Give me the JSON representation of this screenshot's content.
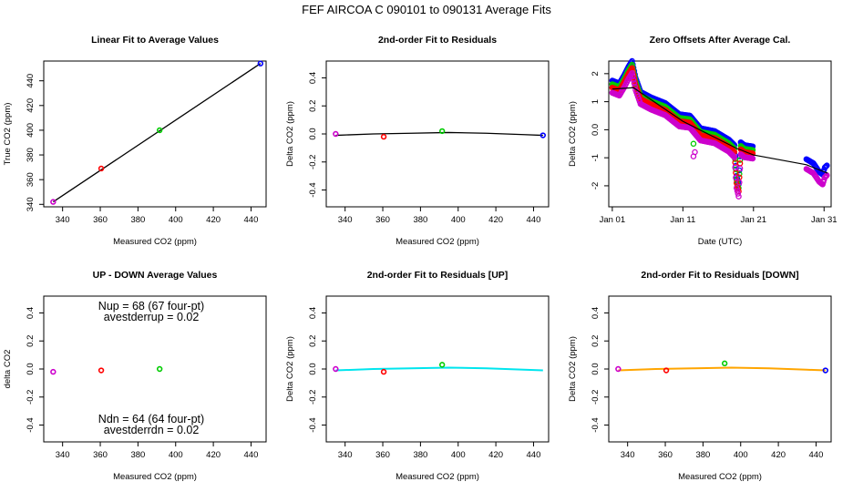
{
  "figure_title": "FEF   AIRCOA C   090101 to 090131   Average Fits",
  "colors": {
    "blue": "#0000ff",
    "red": "#ff0000",
    "green": "#00cc00",
    "purple": "#cc00cc",
    "black": "#000000",
    "cyan": "#00e5ee",
    "orange": "#ffa500"
  },
  "chart_data": [
    {
      "id": "p1",
      "type": "scatter",
      "title": "Linear Fit to Average Values",
      "xlabel": "Measured CO2 (ppm)",
      "ylabel": "True CO2 (ppm)",
      "xlim": [
        330,
        448
      ],
      "ylim": [
        338,
        456
      ],
      "xticks": [
        340,
        360,
        380,
        400,
        420,
        440
      ],
      "yticks": [
        340,
        360,
        380,
        400,
        420,
        440
      ],
      "points": [
        {
          "x": 335,
          "y": 342,
          "color": "purple"
        },
        {
          "x": 360.5,
          "y": 369,
          "color": "red"
        },
        {
          "x": 391.5,
          "y": 400,
          "color": "green"
        },
        {
          "x": 445,
          "y": 454,
          "color": "blue"
        }
      ],
      "lines": [
        {
          "x": [
            335,
            445
          ],
          "y": [
            342,
            454
          ],
          "color": "black"
        }
      ]
    },
    {
      "id": "p2",
      "type": "scatter",
      "title": "2nd-order Fit to Residuals",
      "xlabel": "Measured CO2 (ppm)",
      "ylabel": "Delta CO2 (ppm)",
      "xlim": [
        330,
        448
      ],
      "ylim": [
        -0.52,
        0.52
      ],
      "xticks": [
        340,
        360,
        380,
        400,
        420,
        440
      ],
      "yticks": [
        -0.4,
        -0.2,
        0.0,
        0.2,
        0.4
      ],
      "points": [
        {
          "x": 335,
          "y": 0.0,
          "color": "purple"
        },
        {
          "x": 360.5,
          "y": -0.02,
          "color": "red"
        },
        {
          "x": 391.5,
          "y": 0.02,
          "color": "green"
        },
        {
          "x": 445,
          "y": -0.01,
          "color": "blue"
        }
      ],
      "lines": [
        {
          "x": [
            335,
            355,
            375,
            395,
            415,
            435,
            445
          ],
          "y": [
            -0.01,
            0.0,
            0.005,
            0.01,
            0.005,
            -0.005,
            -0.01
          ],
          "color": "black"
        }
      ]
    },
    {
      "id": "p3",
      "type": "line",
      "title": "Zero Offsets After Average Cal.",
      "xlabel": "Date (UTC)",
      "ylabel": "Delta CO2 (ppm)",
      "xlim": [
        0,
        31.5
      ],
      "ylim": [
        -2.75,
        2.45
      ],
      "xticks": [
        0.5,
        10.5,
        20.5,
        30.5
      ],
      "xticklabels": [
        "Jan 01",
        "Jan 11",
        "Jan 21",
        "Jan 31"
      ],
      "yticks": [
        -2,
        -1,
        0,
        1,
        2
      ],
      "series": [
        {
          "name": "blue",
          "color": "blue",
          "offset": 0.25,
          "x": [
            0.5,
            1.5,
            2.2,
            2.8,
            3.3,
            3.8,
            4.5,
            6.0,
            8.0,
            10.0,
            11.5,
            13.0,
            15.0,
            17.0,
            17.8,
            18.1,
            18.4,
            18.7,
            19.2,
            20.5
          ],
          "y": [
            1.5,
            1.4,
            1.7,
            2.0,
            2.2,
            1.6,
            1.1,
            0.9,
            0.7,
            0.3,
            0.25,
            -0.2,
            -0.3,
            -0.6,
            -0.8,
            -1.9,
            -2.2,
            -0.7,
            -0.8,
            -0.85
          ]
        },
        {
          "name": "blue-b",
          "color": "blue",
          "offset": 0.25,
          "x": [
            28.0,
            29.0,
            29.8,
            30.3,
            30.6,
            31.0
          ],
          "y": [
            -1.3,
            -1.45,
            -1.75,
            -1.85,
            -1.6,
            -1.5
          ]
        },
        {
          "name": "green",
          "color": "green",
          "offset": 0.12,
          "x": [
            0.5,
            1.5,
            2.2,
            2.8,
            3.3,
            3.8,
            4.5,
            6.0,
            8.0,
            10.0,
            11.5,
            13.0,
            15.0,
            17.0,
            17.8,
            18.1,
            18.4,
            18.7,
            19.2,
            20.5
          ],
          "y": [
            1.5,
            1.4,
            1.7,
            2.0,
            2.2,
            1.6,
            1.1,
            0.9,
            0.7,
            0.3,
            0.25,
            -0.2,
            -0.3,
            -0.6,
            -0.8,
            -1.9,
            -2.2,
            -0.7,
            -0.8,
            -0.85
          ]
        },
        {
          "name": "red",
          "color": "red",
          "offset": 0.0,
          "x": [
            0.5,
            1.5,
            2.2,
            2.8,
            3.3,
            3.8,
            4.5,
            6.0,
            8.0,
            10.0,
            11.5,
            13.0,
            15.0,
            17.0,
            17.8,
            18.1,
            18.4,
            18.7,
            19.2,
            20.5
          ],
          "y": [
            1.5,
            1.4,
            1.7,
            2.0,
            2.2,
            1.6,
            1.1,
            0.9,
            0.7,
            0.3,
            0.25,
            -0.2,
            -0.3,
            -0.6,
            -0.8,
            -1.9,
            -2.2,
            -0.7,
            -0.8,
            -0.85
          ]
        },
        {
          "name": "purple",
          "color": "purple",
          "offset": -0.18,
          "x": [
            0.5,
            1.5,
            2.2,
            2.8,
            3.3,
            3.8,
            4.5,
            6.0,
            8.0,
            10.0,
            11.5,
            13.0,
            15.0,
            17.0,
            17.8,
            18.1,
            18.4,
            18.7,
            19.2,
            20.5
          ],
          "y": [
            1.5,
            1.4,
            1.7,
            2.0,
            2.2,
            1.6,
            1.1,
            0.9,
            0.7,
            0.3,
            0.25,
            -0.2,
            -0.3,
            -0.6,
            -0.8,
            -1.9,
            -2.2,
            -0.7,
            -0.8,
            -0.85
          ]
        },
        {
          "name": "purple-b",
          "color": "purple",
          "offset": -0.1,
          "x": [
            28.0,
            29.0,
            29.8,
            30.3,
            30.6,
            31.0
          ],
          "y": [
            -1.3,
            -1.45,
            -1.75,
            -1.85,
            -1.6,
            -1.5
          ]
        },
        {
          "name": "trend",
          "color": "black",
          "offset": 0,
          "x": [
            0.5,
            3.5,
            10.5,
            18.0,
            20.5,
            28.0,
            31.0
          ],
          "y": [
            1.45,
            1.5,
            0.3,
            -0.65,
            -0.9,
            -1.25,
            -1.55
          ]
        }
      ],
      "outliers": [
        {
          "x": 12.0,
          "y": -0.5,
          "color": "green"
        },
        {
          "x": 12.2,
          "y": -0.8,
          "color": "purple"
        },
        {
          "x": 12.0,
          "y": -0.95,
          "color": "purple"
        }
      ]
    },
    {
      "id": "p4",
      "type": "scatter",
      "title": "UP - DOWN Average Values",
      "xlabel": "Measured CO2 (ppm)",
      "ylabel": "delta CO2",
      "xlim": [
        330,
        448
      ],
      "ylim": [
        -0.52,
        0.52
      ],
      "xticks": [
        340,
        360,
        380,
        400,
        420,
        440
      ],
      "yticks": [
        -0.4,
        -0.2,
        0.0,
        0.2,
        0.4
      ],
      "points": [
        {
          "x": 335,
          "y": -0.02,
          "color": "purple"
        },
        {
          "x": 360.5,
          "y": -0.01,
          "color": "red"
        },
        {
          "x": 391.5,
          "y": 0.0,
          "color": "green"
        }
      ],
      "annotations": {
        "nup": "Nup = 68 (67 four-pt)",
        "avestderrup": "avestderrup =  0.02",
        "ndn": "Ndn = 64 (64 four-pt)",
        "avestderrdn": "avestderrdn =  0.02"
      }
    },
    {
      "id": "p5",
      "type": "scatter",
      "title": "2nd-order Fit to Residuals [UP]",
      "xlabel": "Measured CO2 (ppm)",
      "ylabel": "Delta CO2 (ppm)",
      "xlim": [
        330,
        448
      ],
      "ylim": [
        -0.52,
        0.52
      ],
      "xticks": [
        340,
        360,
        380,
        400,
        420,
        440
      ],
      "yticks": [
        -0.4,
        -0.2,
        0.0,
        0.2,
        0.4
      ],
      "points": [
        {
          "x": 335,
          "y": 0.0,
          "color": "purple"
        },
        {
          "x": 360.5,
          "y": -0.02,
          "color": "red"
        },
        {
          "x": 391.5,
          "y": 0.03,
          "color": "green"
        }
      ],
      "lines": [
        {
          "x": [
            335,
            355,
            375,
            395,
            415,
            435,
            445
          ],
          "y": [
            -0.01,
            0.0,
            0.005,
            0.01,
            0.005,
            -0.005,
            -0.01
          ],
          "color": "cyan"
        }
      ]
    },
    {
      "id": "p6",
      "type": "scatter",
      "title": "2nd-order Fit to Residuals [DOWN]",
      "xlabel": "Measured CO2 (ppm)",
      "ylabel": "Delta CO2 (ppm)",
      "xlim": [
        330,
        448
      ],
      "ylim": [
        -0.52,
        0.52
      ],
      "xticks": [
        340,
        360,
        380,
        400,
        420,
        440
      ],
      "yticks": [
        -0.4,
        -0.2,
        0.0,
        0.2,
        0.4
      ],
      "points": [
        {
          "x": 335,
          "y": 0.0,
          "color": "purple"
        },
        {
          "x": 360.5,
          "y": -0.01,
          "color": "red"
        },
        {
          "x": 391.5,
          "y": 0.04,
          "color": "green"
        },
        {
          "x": 445,
          "y": -0.01,
          "color": "blue"
        }
      ],
      "lines": [
        {
          "x": [
            335,
            355,
            375,
            395,
            415,
            435,
            445
          ],
          "y": [
            -0.01,
            0.0,
            0.005,
            0.01,
            0.005,
            -0.005,
            -0.01
          ],
          "color": "orange"
        }
      ]
    }
  ]
}
